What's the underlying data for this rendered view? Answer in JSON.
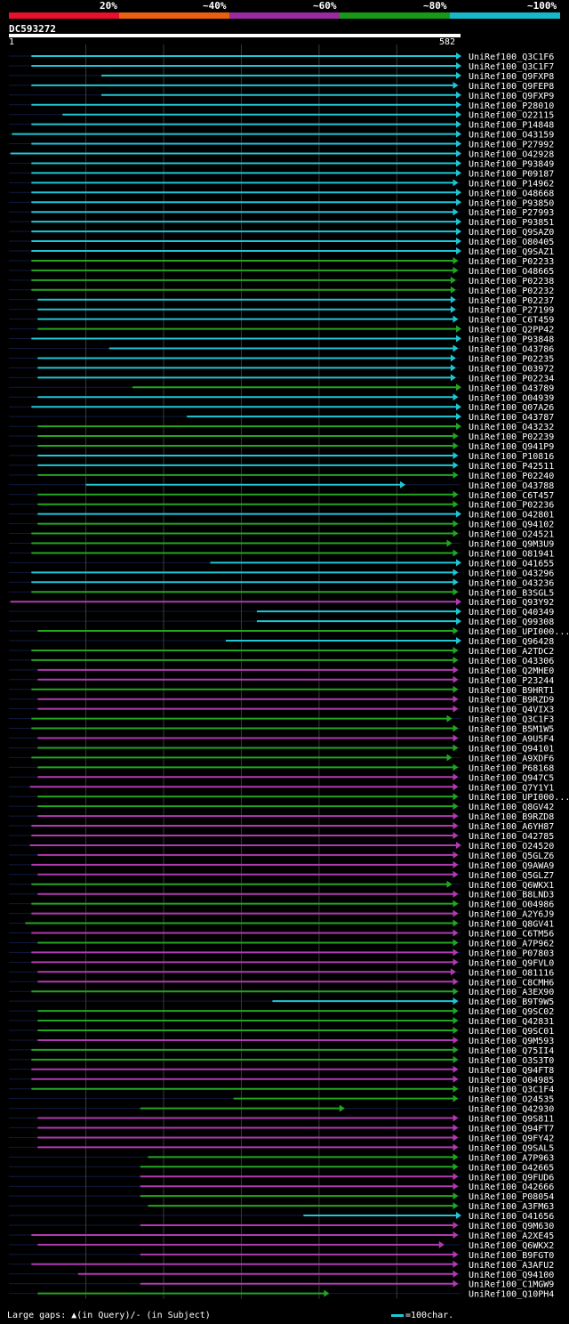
{
  "header": {
    "legend": [
      {
        "label": "20%",
        "color": "#e8102a"
      },
      {
        "label": "~40%",
        "color": "#e86010"
      },
      {
        "label": "~60%",
        "color": "#9a2aa0"
      },
      {
        "label": "~80%",
        "color": "#189a18"
      },
      {
        "label": "~100%",
        "color": "#18b8c8"
      }
    ],
    "query_id": "DC593272",
    "scale_start": "1",
    "scale_end": "582"
  },
  "footer": {
    "gaps_text": "Large gaps: ▲(in Query)/- (in Subject)",
    "scale_text": "=100char."
  },
  "chart_data": {
    "type": "alignment",
    "query_length": 582,
    "hits": [
      {
        "label": "UniRef100_Q3C1F6",
        "start": 30,
        "end": 582,
        "color": "cyan"
      },
      {
        "label": "UniRef100_Q3C1F7",
        "start": 30,
        "end": 582,
        "color": "cyan"
      },
      {
        "label": "UniRef100_Q9FXP8",
        "start": 120,
        "end": 582,
        "color": "cyan"
      },
      {
        "label": "UniRef100_Q9FEP8",
        "start": 30,
        "end": 578,
        "color": "cyan"
      },
      {
        "label": "UniRef100_Q9FXP9",
        "start": 120,
        "end": 582,
        "color": "cyan"
      },
      {
        "label": "UniRef100_P28010",
        "start": 30,
        "end": 582,
        "color": "cyan"
      },
      {
        "label": "UniRef100_O22115",
        "start": 70,
        "end": 582,
        "color": "cyan"
      },
      {
        "label": "UniRef100_P14848",
        "start": 30,
        "end": 582,
        "color": "cyan"
      },
      {
        "label": "UniRef100_O43159",
        "start": 5,
        "end": 582,
        "color": "cyan"
      },
      {
        "label": "UniRef100_P27992",
        "start": 30,
        "end": 582,
        "color": "cyan"
      },
      {
        "label": "UniRef100_O42928",
        "start": 3,
        "end": 582,
        "color": "cyan"
      },
      {
        "label": "UniRef100_P93849",
        "start": 30,
        "end": 582,
        "color": "cyan"
      },
      {
        "label": "UniRef100_P09187",
        "start": 30,
        "end": 582,
        "color": "cyan"
      },
      {
        "label": "UniRef100_P14962",
        "start": 30,
        "end": 578,
        "color": "cyan"
      },
      {
        "label": "UniRef100_O48668",
        "start": 30,
        "end": 582,
        "color": "cyan"
      },
      {
        "label": "UniRef100_P93850",
        "start": 30,
        "end": 582,
        "color": "cyan"
      },
      {
        "label": "UniRef100_P27993",
        "start": 30,
        "end": 578,
        "color": "cyan"
      },
      {
        "label": "UniRef100_P93851",
        "start": 30,
        "end": 582,
        "color": "cyan"
      },
      {
        "label": "UniRef100_Q9SAZ0",
        "start": 30,
        "end": 582,
        "color": "cyan"
      },
      {
        "label": "UniRef100_O80405",
        "start": 30,
        "end": 582,
        "color": "cyan"
      },
      {
        "label": "UniRef100_Q9SAZ1",
        "start": 30,
        "end": 582,
        "color": "cyan"
      },
      {
        "label": "UniRef100_P02233",
        "start": 30,
        "end": 578,
        "color": "green"
      },
      {
        "label": "UniRef100_O48665",
        "start": 30,
        "end": 578,
        "color": "green"
      },
      {
        "label": "UniRef100_P02238",
        "start": 30,
        "end": 575,
        "color": "green"
      },
      {
        "label": "UniRef100_P02232",
        "start": 30,
        "end": 575,
        "color": "green"
      },
      {
        "label": "UniRef100_P02237",
        "start": 38,
        "end": 575,
        "color": "cyan"
      },
      {
        "label": "UniRef100_P27199",
        "start": 38,
        "end": 575,
        "color": "cyan"
      },
      {
        "label": "UniRef100_C6T459",
        "start": 38,
        "end": 578,
        "color": "cyan"
      },
      {
        "label": "UniRef100_Q2PP42",
        "start": 38,
        "end": 582,
        "color": "green"
      },
      {
        "label": "UniRef100_P93848",
        "start": 30,
        "end": 582,
        "color": "cyan"
      },
      {
        "label": "UniRef100_O43786",
        "start": 130,
        "end": 578,
        "color": "cyan"
      },
      {
        "label": "UniRef100_P02235",
        "start": 38,
        "end": 575,
        "color": "cyan"
      },
      {
        "label": "UniRef100_O03972",
        "start": 38,
        "end": 575,
        "color": "cyan"
      },
      {
        "label": "UniRef100_P02234",
        "start": 38,
        "end": 575,
        "color": "cyan"
      },
      {
        "label": "UniRef100_O43789",
        "start": 160,
        "end": 582,
        "color": "green"
      },
      {
        "label": "UniRef100_O04939",
        "start": 38,
        "end": 578,
        "color": "cyan"
      },
      {
        "label": "UniRef100_Q07A26",
        "start": 30,
        "end": 582,
        "color": "cyan"
      },
      {
        "label": "UniRef100_O43787",
        "start": 230,
        "end": 582,
        "color": "cyan"
      },
      {
        "label": "UniRef100_O43232",
        "start": 38,
        "end": 582,
        "color": "green"
      },
      {
        "label": "UniRef100_P02239",
        "start": 38,
        "end": 578,
        "color": "green"
      },
      {
        "label": "UniRef100_Q941P9",
        "start": 38,
        "end": 578,
        "color": "green"
      },
      {
        "label": "UniRef100_P10816",
        "start": 38,
        "end": 578,
        "color": "cyan"
      },
      {
        "label": "UniRef100_P42511",
        "start": 38,
        "end": 578,
        "color": "cyan"
      },
      {
        "label": "UniRef100_P02240",
        "start": 38,
        "end": 578,
        "color": "green"
      },
      {
        "label": "UniRef100_O43788",
        "start": 100,
        "end": 510,
        "color": "cyan"
      },
      {
        "label": "UniRef100_C6T457",
        "start": 38,
        "end": 578,
        "color": "green"
      },
      {
        "label": "UniRef100_P02236",
        "start": 38,
        "end": 578,
        "color": "green"
      },
      {
        "label": "UniRef100_O42801",
        "start": 38,
        "end": 582,
        "color": "cyan"
      },
      {
        "label": "UniRef100_Q94102",
        "start": 38,
        "end": 578,
        "color": "green"
      },
      {
        "label": "UniRef100_O24521",
        "start": 30,
        "end": 578,
        "color": "green"
      },
      {
        "label": "UniRef100_Q9M3U9",
        "start": 30,
        "end": 570,
        "color": "green"
      },
      {
        "label": "UniRef100_O81941",
        "start": 30,
        "end": 578,
        "color": "green"
      },
      {
        "label": "UniRef100_O41655",
        "start": 260,
        "end": 582,
        "color": "cyan"
      },
      {
        "label": "UniRef100_O43296",
        "start": 30,
        "end": 578,
        "color": "cyan"
      },
      {
        "label": "UniRef100_O43236",
        "start": 30,
        "end": 578,
        "color": "cyan"
      },
      {
        "label": "UniRef100_B3SGL5",
        "start": 30,
        "end": 578,
        "color": "green"
      },
      {
        "label": "UniRef100_Q93Y92",
        "start": 3,
        "end": 582,
        "color": "purple"
      },
      {
        "label": "UniRef100_Q40349",
        "start": 320,
        "end": 582,
        "color": "cyan"
      },
      {
        "label": "UniRef100_Q99308",
        "start": 320,
        "end": 582,
        "color": "cyan"
      },
      {
        "label": "UniRef100_UPI000...",
        "start": 38,
        "end": 578,
        "color": "green"
      },
      {
        "label": "UniRef100_Q96428",
        "start": 280,
        "end": 582,
        "color": "cyan"
      },
      {
        "label": "UniRef100_A2TDC2",
        "start": 30,
        "end": 578,
        "color": "green"
      },
      {
        "label": "UniRef100_O43306",
        "start": 30,
        "end": 578,
        "color": "green"
      },
      {
        "label": "UniRef100_Q2MHE0",
        "start": 38,
        "end": 578,
        "color": "purple"
      },
      {
        "label": "UniRef100_P23244",
        "start": 38,
        "end": 578,
        "color": "purple"
      },
      {
        "label": "UniRef100_B9HRT1",
        "start": 30,
        "end": 578,
        "color": "green"
      },
      {
        "label": "UniRef100_B9RZD9",
        "start": 38,
        "end": 578,
        "color": "purple"
      },
      {
        "label": "UniRef100_Q4VIX3",
        "start": 38,
        "end": 578,
        "color": "purple"
      },
      {
        "label": "UniRef100_Q3C1F3",
        "start": 30,
        "end": 570,
        "color": "green"
      },
      {
        "label": "UniRef100_B5M1W5",
        "start": 30,
        "end": 578,
        "color": "green"
      },
      {
        "label": "UniRef100_A9U5F4",
        "start": 38,
        "end": 578,
        "color": "purple"
      },
      {
        "label": "UniRef100_Q94101",
        "start": 38,
        "end": 578,
        "color": "green"
      },
      {
        "label": "UniRef100_A9XDF6",
        "start": 30,
        "end": 570,
        "color": "green"
      },
      {
        "label": "UniRef100_P68168",
        "start": 38,
        "end": 578,
        "color": "green"
      },
      {
        "label": "UniRef100_Q947C5",
        "start": 38,
        "end": 578,
        "color": "purple"
      },
      {
        "label": "UniRef100_Q7Y1Y1",
        "start": 28,
        "end": 578,
        "color": "purple"
      },
      {
        "label": "UniRef100_UPI000...",
        "start": 38,
        "end": 578,
        "color": "green"
      },
      {
        "label": "UniRef100_Q8GV42",
        "start": 38,
        "end": 578,
        "color": "green"
      },
      {
        "label": "UniRef100_B9RZD8",
        "start": 38,
        "end": 578,
        "color": "purple"
      },
      {
        "label": "UniRef100_A6YH87",
        "start": 30,
        "end": 578,
        "color": "purple"
      },
      {
        "label": "UniRef100_O42785",
        "start": 30,
        "end": 578,
        "color": "purple"
      },
      {
        "label": "UniRef100_O24520",
        "start": 28,
        "end": 582,
        "color": "purple"
      },
      {
        "label": "UniRef100_Q5GLZ6",
        "start": 38,
        "end": 578,
        "color": "purple"
      },
      {
        "label": "UniRef100_Q9AWA9",
        "start": 30,
        "end": 578,
        "color": "purple"
      },
      {
        "label": "UniRef100_Q5GLZ7",
        "start": 38,
        "end": 578,
        "color": "purple"
      },
      {
        "label": "UniRef100_Q6WKX1",
        "start": 30,
        "end": 570,
        "color": "green"
      },
      {
        "label": "UniRef100_B8LND3",
        "start": 38,
        "end": 578,
        "color": "purple"
      },
      {
        "label": "UniRef100_O04986",
        "start": 30,
        "end": 578,
        "color": "green"
      },
      {
        "label": "UniRef100_A2Y6J9",
        "start": 30,
        "end": 578,
        "color": "purple"
      },
      {
        "label": "UniRef100_Q8GV41",
        "start": 22,
        "end": 578,
        "color": "green"
      },
      {
        "label": "UniRef100_C6TM56",
        "start": 30,
        "end": 578,
        "color": "purple"
      },
      {
        "label": "UniRef100_A7P962",
        "start": 38,
        "end": 578,
        "color": "green"
      },
      {
        "label": "UniRef100_P07803",
        "start": 30,
        "end": 578,
        "color": "purple"
      },
      {
        "label": "UniRef100_Q9FVL0",
        "start": 30,
        "end": 578,
        "color": "purple"
      },
      {
        "label": "UniRef100_O81116",
        "start": 38,
        "end": 575,
        "color": "purple"
      },
      {
        "label": "UniRef100_C8CMH6",
        "start": 38,
        "end": 578,
        "color": "purple"
      },
      {
        "label": "UniRef100_A3EX90",
        "start": 30,
        "end": 578,
        "color": "green"
      },
      {
        "label": "UniRef100_B9T9W5",
        "start": 340,
        "end": 578,
        "color": "cyan"
      },
      {
        "label": "UniRef100_Q9SC02",
        "start": 38,
        "end": 578,
        "color": "green"
      },
      {
        "label": "UniRef100_Q42831",
        "start": 38,
        "end": 578,
        "color": "green"
      },
      {
        "label": "UniRef100_Q9SC01",
        "start": 38,
        "end": 578,
        "color": "green"
      },
      {
        "label": "UniRef100_Q9M593",
        "start": 38,
        "end": 578,
        "color": "purple"
      },
      {
        "label": "UniRef100_Q75II4",
        "start": 30,
        "end": 578,
        "color": "green"
      },
      {
        "label": "UniRef100_O3S3T0",
        "start": 30,
        "end": 578,
        "color": "green"
      },
      {
        "label": "UniRef100_Q94FT8",
        "start": 30,
        "end": 578,
        "color": "purple"
      },
      {
        "label": "UniRef100_O04985",
        "start": 30,
        "end": 578,
        "color": "purple"
      },
      {
        "label": "UniRef100_Q3C1F4",
        "start": 30,
        "end": 578,
        "color": "green"
      },
      {
        "label": "UniRef100_O24535",
        "start": 290,
        "end": 578,
        "color": "green"
      },
      {
        "label": "UniRef100_Q42930",
        "start": 170,
        "end": 432,
        "color": "green"
      },
      {
        "label": "UniRef100_Q9S811",
        "start": 38,
        "end": 578,
        "color": "purple"
      },
      {
        "label": "UniRef100_Q94FT7",
        "start": 38,
        "end": 578,
        "color": "purple"
      },
      {
        "label": "UniRef100_Q9FY42",
        "start": 38,
        "end": 578,
        "color": "purple"
      },
      {
        "label": "UniRef100_Q9SAL5",
        "start": 38,
        "end": 578,
        "color": "purple"
      },
      {
        "label": "UniRef100_A7P963",
        "start": 180,
        "end": 578,
        "color": "green"
      },
      {
        "label": "UniRef100_O42665",
        "start": 170,
        "end": 578,
        "color": "green"
      },
      {
        "label": "UniRef100_Q9FUD6",
        "start": 170,
        "end": 578,
        "color": "purple"
      },
      {
        "label": "UniRef100_O42666",
        "start": 170,
        "end": 578,
        "color": "purple"
      },
      {
        "label": "UniRef100_P08054",
        "start": 170,
        "end": 578,
        "color": "green"
      },
      {
        "label": "UniRef100_A3FM63",
        "start": 180,
        "end": 578,
        "color": "green"
      },
      {
        "label": "UniRef100_O41656",
        "start": 380,
        "end": 582,
        "color": "cyan"
      },
      {
        "label": "UniRef100_Q9M630",
        "start": 170,
        "end": 578,
        "color": "purple"
      },
      {
        "label": "UniRef100_A2XE45",
        "start": 30,
        "end": 578,
        "color": "purple"
      },
      {
        "label": "UniRef100_Q6WKX2",
        "start": 38,
        "end": 560,
        "color": "purple"
      },
      {
        "label": "UniRef100_B9FGT0",
        "start": 170,
        "end": 578,
        "color": "purple"
      },
      {
        "label": "UniRef100_A3AFU2",
        "start": 30,
        "end": 578,
        "color": "purple"
      },
      {
        "label": "UniRef100_Q94100",
        "start": 90,
        "end": 578,
        "color": "purple"
      },
      {
        "label": "UniRef100_C1MGW9",
        "start": 170,
        "end": 578,
        "color": "purple"
      },
      {
        "label": "UniRef100_Q10PH4",
        "start": 38,
        "end": 412,
        "color": "green"
      }
    ]
  }
}
